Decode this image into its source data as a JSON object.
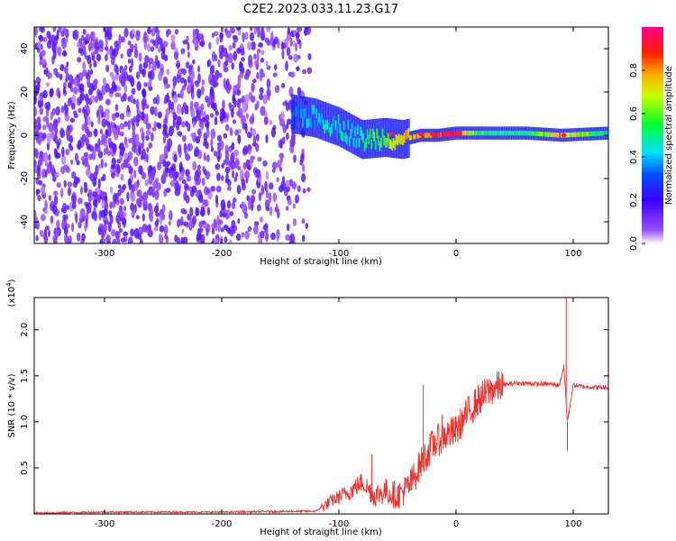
{
  "title": "C2E2.2023.033.11.23.G17",
  "chart_data": [
    {
      "type": "heatmap",
      "xlabel": "Height of straight line (km)",
      "ylabel": "Frequency (Hz)",
      "xlim": [
        -360,
        130
      ],
      "ylim": [
        -50,
        50
      ],
      "x_ticks": [
        -300,
        -200,
        -100,
        0,
        100
      ],
      "y_ticks": [
        -40,
        -20,
        0,
        20,
        40
      ],
      "colorbar": {
        "label": "Normalized spectral amplitude",
        "range": [
          0,
          1
        ],
        "ticks": [
          "0.0",
          "0.2",
          "0.4",
          "0.6",
          "0.8"
        ],
        "colors": [
          "#ffffff",
          "#7f00ff",
          "#0000ff",
          "#00ffff",
          "#00ff00",
          "#ffff00",
          "#ff0000",
          "#ff0080"
        ]
      },
      "ridge": [
        {
          "x": -140,
          "f": 10,
          "amp": 0.35
        },
        {
          "x": -120,
          "f": 8,
          "amp": 0.45
        },
        {
          "x": -100,
          "f": 4,
          "amp": 0.45
        },
        {
          "x": -80,
          "f": -2,
          "amp": 0.5
        },
        {
          "x": -60,
          "f": -1,
          "amp": 0.6
        },
        {
          "x": -45,
          "f": -2,
          "amp": 0.75
        },
        {
          "x": -30,
          "f": 0,
          "amp": 0.9
        },
        {
          "x": -15,
          "f": 0,
          "amp": 0.95
        },
        {
          "x": 0,
          "f": 1,
          "amp": 0.95
        },
        {
          "x": 20,
          "f": 1,
          "amp": 0.55
        },
        {
          "x": 60,
          "f": 1,
          "amp": 0.5
        },
        {
          "x": 90,
          "f": 0,
          "amp": 0.8
        },
        {
          "x": 130,
          "f": 1,
          "amp": 0.45
        }
      ]
    },
    {
      "type": "line",
      "xlabel": "Height of straight line (km)",
      "ylabel": "SNR (10 * v/v)",
      "y_multiplier": "(x10^4)",
      "xlim": [
        -360,
        130
      ],
      "ylim": [
        0,
        2.35
      ],
      "x_ticks": [
        -300,
        -200,
        -100,
        0,
        100
      ],
      "y_ticks": [
        0.5,
        1.0,
        1.5,
        2.0
      ],
      "series": [
        {
          "color": "#e8332e",
          "x": [
            -360,
            -300,
            -200,
            -120,
            -105,
            -90,
            -80,
            -70,
            -60,
            -50,
            -40,
            -30,
            -20,
            -10,
            0,
            10,
            20,
            30,
            40,
            50,
            60,
            70,
            80,
            88,
            92,
            95,
            100,
            110,
            130
          ],
          "y": [
            0.01,
            0.02,
            0.02,
            0.03,
            0.15,
            0.25,
            0.35,
            0.2,
            0.25,
            0.2,
            0.3,
            0.55,
            0.75,
            0.85,
            0.9,
            1.1,
            1.25,
            1.35,
            1.4,
            1.42,
            1.42,
            1.41,
            1.41,
            1.4,
            1.6,
            1.0,
            1.4,
            1.38,
            1.37
          ]
        }
      ],
      "spikes": [
        {
          "x": -72,
          "y": 0.65
        },
        {
          "x": -28,
          "y": 1.4
        },
        {
          "x": -12,
          "y": 1.08
        },
        {
          "x": 94,
          "y": 2.35
        },
        {
          "x": 95,
          "y": 0.68
        }
      ]
    }
  ]
}
